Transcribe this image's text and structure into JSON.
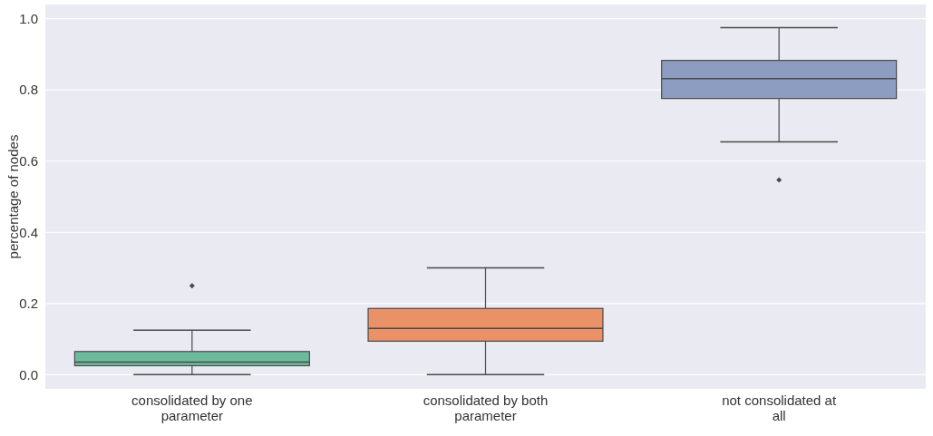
{
  "chart_data": {
    "type": "box",
    "ylabel": "percentage of nodes",
    "categories": [
      "consolidated by one\nparameter",
      "consolidated by both\nparameter",
      "not consolidated at\nall"
    ],
    "colors": [
      "#6dbb9c",
      "#ea9168",
      "#8d9dc2"
    ],
    "boxes": [
      {
        "low": 0,
        "q1": 0.025,
        "median": 0.035,
        "q3": 0.065,
        "high": 0.125,
        "outliers": [
          0.25
        ]
      },
      {
        "low": 0,
        "q1": 0.094,
        "median": 0.13,
        "q3": 0.186,
        "high": 0.3
      },
      {
        "low": 0.654,
        "q1": 0.776,
        "median": 0.832,
        "q3": 0.883,
        "high": 0.975,
        "outliers": [
          0.547
        ]
      }
    ],
    "ylim": [
      -0.04,
      1.04
    ],
    "yticks": [
      {
        "value": 0,
        "label": "0.0"
      },
      {
        "value": 0.2,
        "label": "0.2"
      },
      {
        "value": 0.4,
        "label": "0.4"
      },
      {
        "value": 0.6,
        "label": "0.6"
      },
      {
        "value": 0.8,
        "label": "0.8"
      },
      {
        "value": 1,
        "label": "1.0"
      }
    ],
    "grid": "y"
  }
}
